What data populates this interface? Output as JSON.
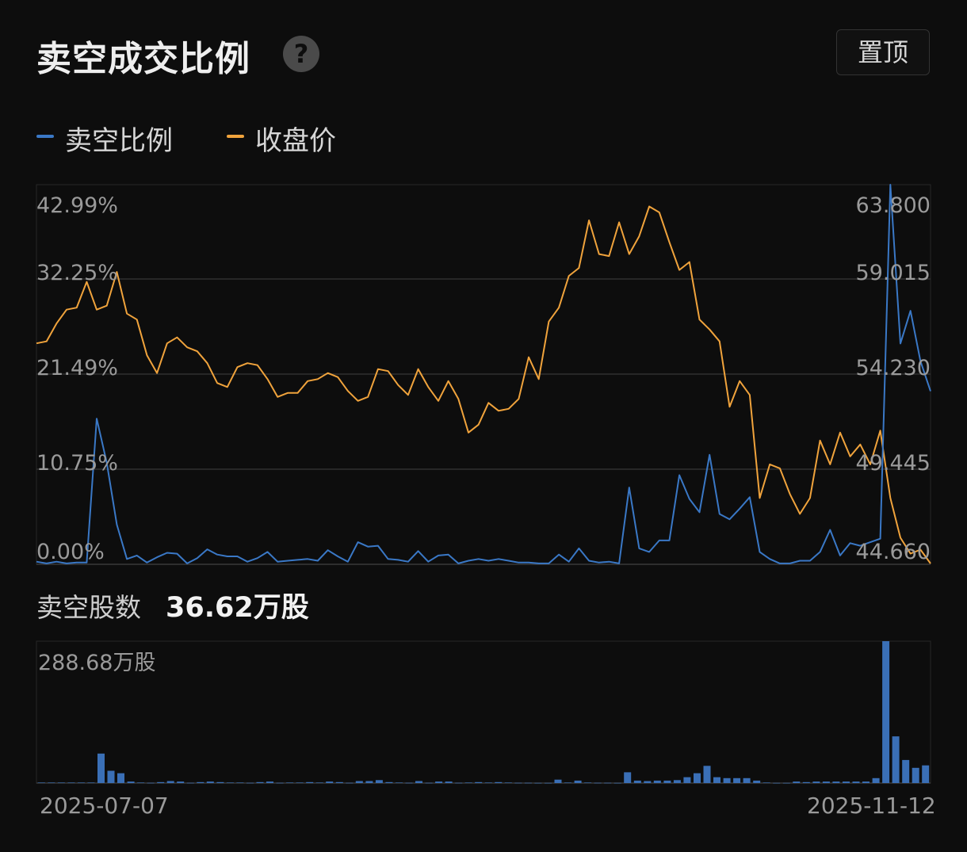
{
  "header": {
    "title": "卖空成交比例",
    "help_icon": "question-circle-icon",
    "pin_label": "置顶"
  },
  "legend": [
    {
      "label": "卖空比例",
      "color": "#3a78c6"
    },
    {
      "label": "收盘价",
      "color": "#f0a33c"
    }
  ],
  "summary": {
    "label": "卖空股数",
    "value": "36.62万股"
  },
  "dates": {
    "start": "2025-07-07",
    "end": "2025-11-12"
  },
  "chart_data": [
    {
      "type": "line",
      "left_axis_ticks": [
        "42.99%",
        "32.25%",
        "21.49%",
        "10.75%",
        "0.00%"
      ],
      "right_axis_ticks": [
        "63.800",
        "59.015",
        "54.230",
        "49.445",
        "44.660"
      ],
      "ylim_left": [
        0,
        42.99
      ],
      "ylim_right": [
        44.66,
        63.8
      ],
      "grid": true,
      "series": [
        {
          "name": "卖空比例",
          "color": "#3a78c6",
          "axis": "left",
          "values": [
            0.3,
            0.1,
            0.3,
            0.1,
            0.2,
            0.2,
            16.5,
            11.5,
            4.5,
            0.6,
            1.0,
            0.2,
            0.8,
            1.3,
            1.2,
            0.1,
            0.7,
            1.7,
            1.1,
            0.9,
            0.9,
            0.3,
            0.7,
            1.4,
            0.3,
            0.4,
            0.5,
            0.6,
            0.4,
            1.6,
            0.9,
            0.3,
            2.5,
            2.0,
            2.1,
            0.6,
            0.5,
            0.3,
            1.5,
            0.3,
            1.0,
            1.1,
            0.1,
            0.4,
            0.6,
            0.4,
            0.6,
            0.4,
            0.2,
            0.2,
            0.1,
            0.1,
            1.1,
            0.3,
            1.8,
            0.4,
            0.2,
            0.3,
            0.1,
            8.7,
            1.8,
            1.4,
            2.7,
            2.7,
            10.1,
            7.4,
            5.9,
            12.4,
            5.7,
            5.1,
            6.3,
            7.6,
            1.4,
            0.6,
            0.1,
            0.1,
            0.4,
            0.4,
            1.4,
            3.9,
            1.0,
            2.4,
            2.1,
            2.5,
            2.9,
            43.0,
            25.0,
            28.7,
            23.0,
            19.6
          ]
        },
        {
          "name": "收盘价",
          "color": "#f0a33c",
          "axis": "right",
          "values": [
            55.8,
            55.9,
            56.8,
            57.5,
            57.6,
            58.9,
            57.5,
            57.7,
            59.4,
            57.3,
            57.0,
            55.2,
            54.3,
            55.8,
            56.1,
            55.6,
            55.4,
            54.8,
            53.8,
            53.6,
            54.6,
            54.8,
            54.7,
            54.0,
            53.1,
            53.3,
            53.3,
            53.9,
            54.0,
            54.3,
            54.1,
            53.4,
            52.9,
            53.1,
            54.5,
            54.4,
            53.7,
            53.2,
            54.5,
            53.6,
            52.9,
            53.9,
            53.0,
            51.3,
            51.7,
            52.8,
            52.4,
            52.5,
            53.0,
            55.1,
            54.0,
            56.9,
            57.6,
            59.2,
            59.6,
            62.0,
            60.3,
            60.2,
            61.9,
            60.3,
            61.2,
            62.7,
            62.4,
            60.9,
            59.5,
            59.9,
            57.0,
            56.5,
            55.9,
            52.6,
            53.9,
            53.2,
            48.0,
            49.7,
            49.5,
            48.2,
            47.2,
            48.0,
            50.9,
            49.7,
            51.3,
            50.1,
            50.7,
            49.7,
            51.4,
            48.0,
            46.0,
            45.2,
            45.4,
            44.7
          ]
        }
      ]
    },
    {
      "type": "bar",
      "label": "288.68万股",
      "ylim": [
        0,
        288.68
      ],
      "values": [
        1,
        1,
        1,
        1,
        1,
        1,
        60,
        25,
        20,
        3,
        1,
        0.5,
        2,
        4,
        3,
        0.5,
        2,
        3,
        2,
        1,
        1,
        0.5,
        2,
        3,
        0.5,
        1,
        1,
        2,
        1,
        3,
        2,
        0.5,
        4,
        4,
        6,
        2,
        1,
        0.5,
        4,
        0.5,
        3,
        3,
        0.5,
        1,
        2,
        1,
        2,
        1,
        0.5,
        0.5,
        0.3,
        0.3,
        7,
        1,
        5,
        1,
        0.5,
        0.5,
        0.3,
        22,
        5,
        4,
        5,
        5,
        6,
        12,
        20,
        35,
        12,
        10,
        10,
        10,
        5,
        1,
        0.3,
        0.3,
        3,
        2,
        3,
        3,
        3,
        3,
        3,
        3,
        10,
        288.68,
        95,
        47,
        31,
        36
      ]
    }
  ]
}
